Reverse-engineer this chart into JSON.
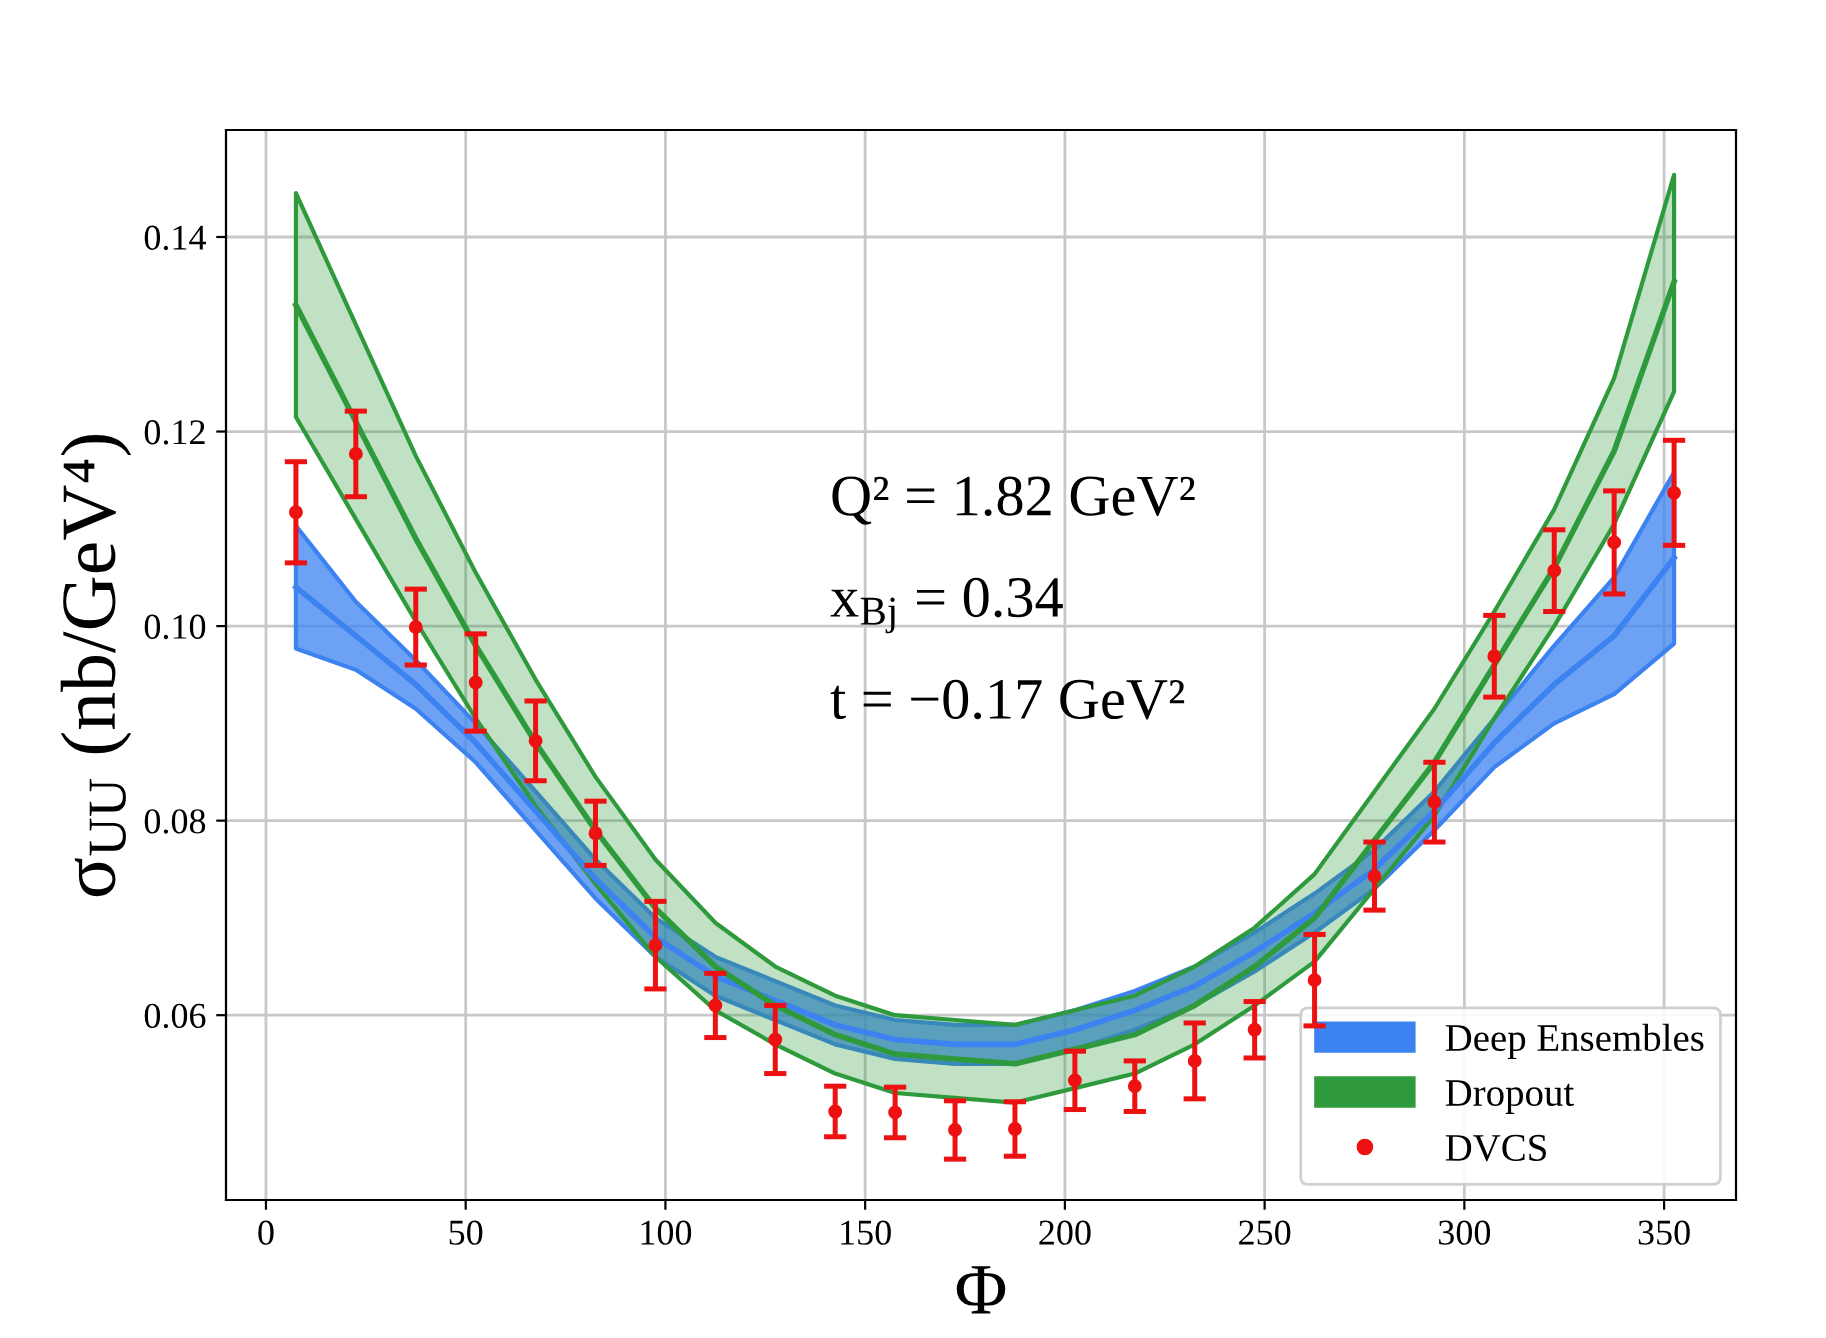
{
  "chart_data": {
    "type": "line",
    "xlabel": "Φ",
    "ylabel": "σ$_{UU}$ (nb/GeV⁴)",
    "xlim": [
      -10,
      368
    ],
    "ylim": [
      0.041,
      0.151
    ],
    "xticks": [
      0,
      50,
      100,
      150,
      200,
      250,
      300,
      350
    ],
    "yticks": [
      0.06,
      0.08,
      {
        "value": 0.1,
        "label": "0.10"
      },
      0.12,
      0.14
    ],
    "grid": true,
    "legend": "bottom right",
    "annotations": [
      "Q² = 1.82 GeV²",
      "x$_{Bj}$ = 0.34",
      "t = −0.17 GeV²"
    ],
    "x": [
      7.5,
      22.5,
      37.5,
      52.5,
      67.5,
      82.5,
      97.5,
      112.5,
      127.5,
      142.5,
      157.5,
      172.5,
      187.5,
      202.5,
      217.5,
      232.5,
      247.5,
      262.5,
      277.5,
      292.5,
      307.5,
      322.5,
      337.5,
      352.5
    ],
    "series": [
      {
        "name": "Deep Ensembles",
        "type": "line",
        "color": "#3c82f0",
        "values": [
          0.104,
          0.099,
          0.094,
          0.088,
          0.081,
          0.074,
          0.068,
          0.064,
          0.0615,
          0.059,
          0.0575,
          0.057,
          0.057,
          0.0585,
          0.0605,
          0.063,
          0.0665,
          0.0705,
          0.075,
          0.081,
          0.088,
          0.094,
          0.099,
          0.107
        ],
        "lower": [
          0.0977,
          0.0955,
          0.0915,
          0.086,
          0.079,
          0.072,
          0.066,
          0.062,
          0.0595,
          0.057,
          0.0555,
          0.055,
          0.055,
          0.0565,
          0.0585,
          0.061,
          0.0645,
          0.0685,
          0.073,
          0.079,
          0.0855,
          0.09,
          0.093,
          0.0982
        ],
        "upper": [
          0.1103,
          0.1025,
          0.0965,
          0.09,
          0.083,
          0.076,
          0.07,
          0.066,
          0.0635,
          0.061,
          0.0595,
          0.059,
          0.059,
          0.0605,
          0.0625,
          0.065,
          0.0685,
          0.0725,
          0.077,
          0.083,
          0.0905,
          0.098,
          0.105,
          0.1158
        ]
      },
      {
        "name": "Dropout",
        "type": "line",
        "color": "#2e9a3c",
        "values": [
          0.133,
          0.121,
          0.109,
          0.098,
          0.088,
          0.079,
          0.071,
          0.065,
          0.061,
          0.058,
          0.056,
          0.0555,
          0.055,
          0.0565,
          0.058,
          0.061,
          0.065,
          0.07,
          0.078,
          0.086,
          0.096,
          0.106,
          0.118,
          0.1354
        ],
        "lower": [
          0.1215,
          0.111,
          0.1005,
          0.0905,
          0.0815,
          0.0735,
          0.066,
          0.0605,
          0.057,
          0.054,
          0.052,
          0.0515,
          0.051,
          0.0525,
          0.054,
          0.057,
          0.061,
          0.0655,
          0.073,
          0.0805,
          0.0905,
          0.1,
          0.1105,
          0.1241
        ],
        "upper": [
          0.1445,
          0.131,
          0.1175,
          0.1055,
          0.0945,
          0.0845,
          0.076,
          0.0695,
          0.065,
          0.062,
          0.06,
          0.0595,
          0.059,
          0.0605,
          0.062,
          0.065,
          0.069,
          0.0745,
          0.083,
          0.0915,
          0.1015,
          0.112,
          0.1255,
          0.1464
        ]
      },
      {
        "name": "DVCS",
        "type": "scatter",
        "color": "#ee1111",
        "marker": "circle",
        "values": [
          0.1117,
          0.1177,
          0.0999,
          0.0942,
          0.0882,
          0.0787,
          0.0672,
          0.061,
          0.0575,
          0.0501,
          0.05,
          0.0482,
          0.0483,
          0.0533,
          0.0527,
          0.0553,
          0.0585,
          0.0636,
          0.0743,
          0.0819,
          0.0969,
          0.1057,
          0.1086,
          0.1137
        ],
        "errors": [
          0.0052,
          0.0044,
          0.0039,
          0.005,
          0.0041,
          0.0033,
          0.0045,
          0.0033,
          0.0035,
          0.0026,
          0.0026,
          0.003,
          0.0028,
          0.003,
          0.0026,
          0.0039,
          0.0029,
          0.0047,
          0.0035,
          0.0041,
          0.0042,
          0.0042,
          0.0053,
          0.0054
        ]
      }
    ]
  }
}
